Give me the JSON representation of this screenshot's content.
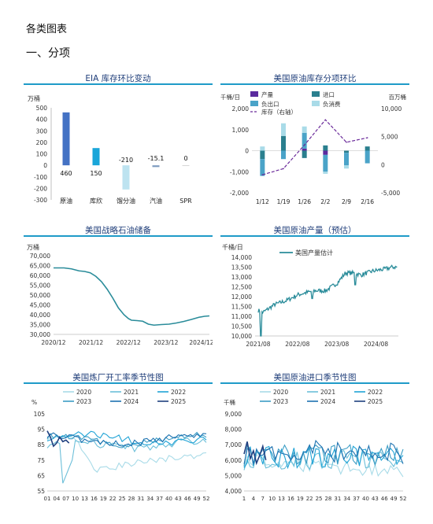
{
  "headings": {
    "h1": "各类图表",
    "h2": "一、分项"
  },
  "chart_data": [
    {
      "id": "eia",
      "type": "bar",
      "title": "EIA 库存环比变动",
      "unit": "万桶",
      "categories": [
        "原油",
        "库欣",
        "馏分油",
        "汽油",
        "SPR"
      ],
      "values": [
        460,
        150,
        -210,
        -15.1,
        0
      ],
      "value_labels": [
        "460",
        "150",
        "-210",
        "-15.1",
        "0"
      ],
      "bar_colors": [
        "#4472c4",
        "#1aa6d9",
        "#bde3f0",
        "#7f9cc0",
        "#cccccc"
      ],
      "ylim": [
        -300,
        500
      ],
      "yticks": [
        -300,
        -200,
        -100,
        0,
        100,
        200,
        300,
        400,
        500
      ]
    },
    {
      "id": "components",
      "type": "bar",
      "title": "美国原油库存分项环比",
      "left_unit": "千桶/日",
      "right_unit": "百万桶",
      "legend": [
        "产量",
        "进口",
        "负出口",
        "负消费",
        "库存（右轴）"
      ],
      "legend_colors": [
        "#5b2a9e",
        "#2a7f8e",
        "#4aa3c8",
        "#a9dbe8",
        "#6a2a9a"
      ],
      "categories": [
        "1/12",
        "1/19",
        "1/26",
        "2/2",
        "2/9",
        "2/16"
      ],
      "series": [
        {
          "name": "产量",
          "values": [
            0,
            0,
            100,
            -200,
            0,
            0
          ]
        },
        {
          "name": "进口",
          "values": [
            -400,
            700,
            -350,
            250,
            -100,
            200
          ]
        },
        {
          "name": "负出口",
          "values": [
            -800,
            -400,
            750,
            -800,
            -600,
            -600
          ]
        },
        {
          "name": "负消费",
          "values": [
            200,
            600,
            300,
            -100,
            -150,
            0
          ]
        },
        {
          "name": "库存（右轴）",
          "axis": "right",
          "values": [
            -1800,
            -700,
            3500,
            8000,
            4000,
            4800
          ]
        }
      ],
      "ylim": [
        -2000,
        2000
      ],
      "yticks": [
        -2000,
        -1000,
        0,
        1000,
        2000
      ],
      "y2lim": [
        -5000,
        10000
      ],
      "y2ticks": [
        -5000,
        0,
        5000,
        10000
      ]
    },
    {
      "id": "spr",
      "type": "line",
      "title": "美国战略石油储备",
      "unit": "万桶",
      "xticks": [
        "2020/12",
        "2021/12",
        "2022/12",
        "2023/12",
        "2024/12"
      ],
      "xrange": [
        2020.92,
        2025.08
      ],
      "x": [
        2020.92,
        2021.2,
        2021.4,
        2021.6,
        2021.75,
        2021.9,
        2022.05,
        2022.2,
        2022.35,
        2022.5,
        2022.65,
        2022.8,
        2022.92,
        2023.0,
        2023.15,
        2023.3,
        2023.45,
        2023.6,
        2023.8,
        2024.0,
        2024.2,
        2024.4,
        2024.6,
        2024.8,
        2024.95,
        2025.08
      ],
      "y": [
        63800,
        63800,
        63300,
        62300,
        62000,
        61300,
        59500,
        56800,
        53000,
        48500,
        43500,
        40000,
        38000,
        37200,
        37000,
        36700,
        35200,
        34700,
        35000,
        35200,
        35800,
        36600,
        37600,
        38700,
        39200,
        39400
      ],
      "ylim": [
        30000,
        70000
      ],
      "yticks": [
        30000,
        35000,
        40000,
        45000,
        50000,
        55000,
        60000,
        65000,
        70000
      ],
      "color": "#2a8c9a"
    },
    {
      "id": "prod",
      "type": "line",
      "title": "美国原油产量（预估）",
      "unit": "千桶/日",
      "legend": "美国产量估计",
      "xticks": [
        "2021/08",
        "2022/08",
        "2023/08",
        "2024/08"
      ],
      "xrange": [
        2021.5,
        2025.15
      ],
      "ylim": [
        10000,
        14000
      ],
      "yticks": [
        10000,
        10500,
        11000,
        11500,
        12000,
        12500,
        13000,
        13500,
        14000
      ],
      "color": "#2a8c9a"
    },
    {
      "id": "refinery",
      "type": "line",
      "title": "美国炼厂开工率季节性图",
      "unit": "%",
      "legend": [
        "2020",
        "2021",
        "2022",
        "2023",
        "2024",
        "2025"
      ],
      "colors": [
        "#a8dbe8",
        "#6cbfd9",
        "#1fa3d6",
        "#3c9dc5",
        "#1d72b0",
        "#1f3f7f"
      ],
      "xticks": [
        "01",
        "04",
        "07",
        "10",
        "13",
        "16",
        "19",
        "22",
        "25",
        "28",
        "31",
        "34",
        "37",
        "40",
        "43",
        "46",
        "49",
        "52"
      ],
      "ylim": [
        55,
        105
      ],
      "yticks": [
        55,
        65,
        75,
        85,
        95,
        105
      ]
    },
    {
      "id": "imports",
      "type": "line",
      "title": "美国原油进口季节性图",
      "unit": "千桶",
      "legend": [
        "2020",
        "2021",
        "2022",
        "2023",
        "2024",
        "2025"
      ],
      "colors": [
        "#a8dbe8",
        "#6cbfd9",
        "#1fa3d6",
        "#3c9dc5",
        "#1d72b0",
        "#1f3f7f"
      ],
      "xticks": [
        "1",
        "4",
        "7",
        "10",
        "13",
        "16",
        "19",
        "22",
        "25",
        "28",
        "31",
        "34",
        "37",
        "40",
        "43",
        "46",
        "49",
        "52"
      ],
      "ylim": [
        4000,
        9000
      ],
      "yticks": [
        4000,
        5000,
        6000,
        7000,
        8000,
        9000
      ]
    }
  ]
}
